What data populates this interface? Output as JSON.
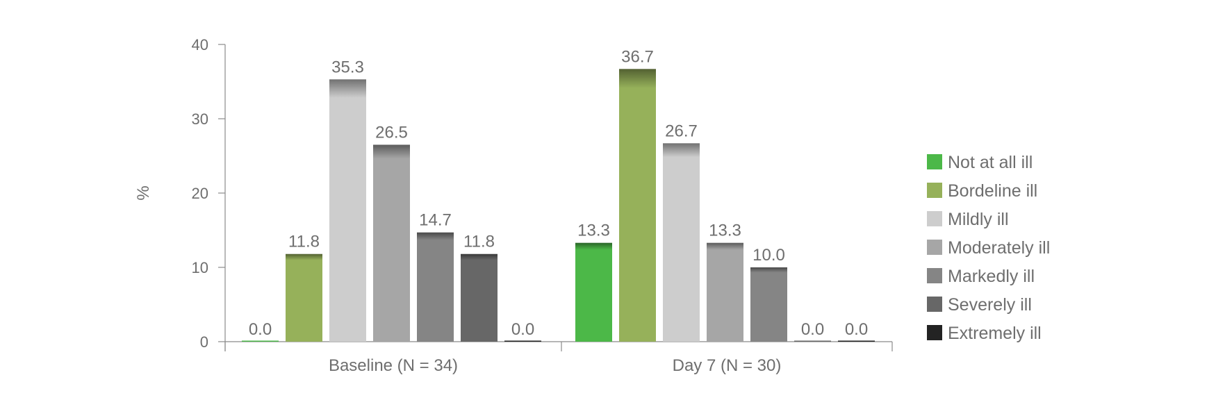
{
  "chart_data": {
    "type": "bar",
    "ylabel": "%",
    "ylim": [
      0,
      40
    ],
    "yticks": [
      0,
      10,
      20,
      30,
      40
    ],
    "grid": false,
    "legend_position": "right",
    "categories": [
      "Baseline (N = 34)",
      "Day 7 (N = 30)"
    ],
    "series": [
      {
        "name": "Not at all ill",
        "color": "#4cb848",
        "values": [
          0.0,
          13.3
        ]
      },
      {
        "name": "Bordeline ill",
        "color": "#96b15a",
        "values": [
          11.8,
          36.7
        ]
      },
      {
        "name": "Mildly ill",
        "color": "#cdcdcd",
        "values": [
          35.3,
          26.7
        ]
      },
      {
        "name": "Moderately ill",
        "color": "#a6a6a6",
        "values": [
          26.5,
          13.3
        ]
      },
      {
        "name": "Markedly ill",
        "color": "#858585",
        "values": [
          14.7,
          10.0
        ]
      },
      {
        "name": "Severely ill",
        "color": "#676767",
        "values": [
          11.8,
          0.0
        ]
      },
      {
        "name": "Extremely ill",
        "color": "#232323",
        "values": [
          0.0,
          0.0
        ]
      }
    ],
    "value_labels": [
      [
        "0.0",
        "11.8",
        "35.3",
        "26.5",
        "14.7",
        "11.8",
        "0.0"
      ],
      [
        "13.3",
        "36.7",
        "26.7",
        "13.3",
        "10.0",
        "0.0",
        "0.0"
      ]
    ]
  }
}
